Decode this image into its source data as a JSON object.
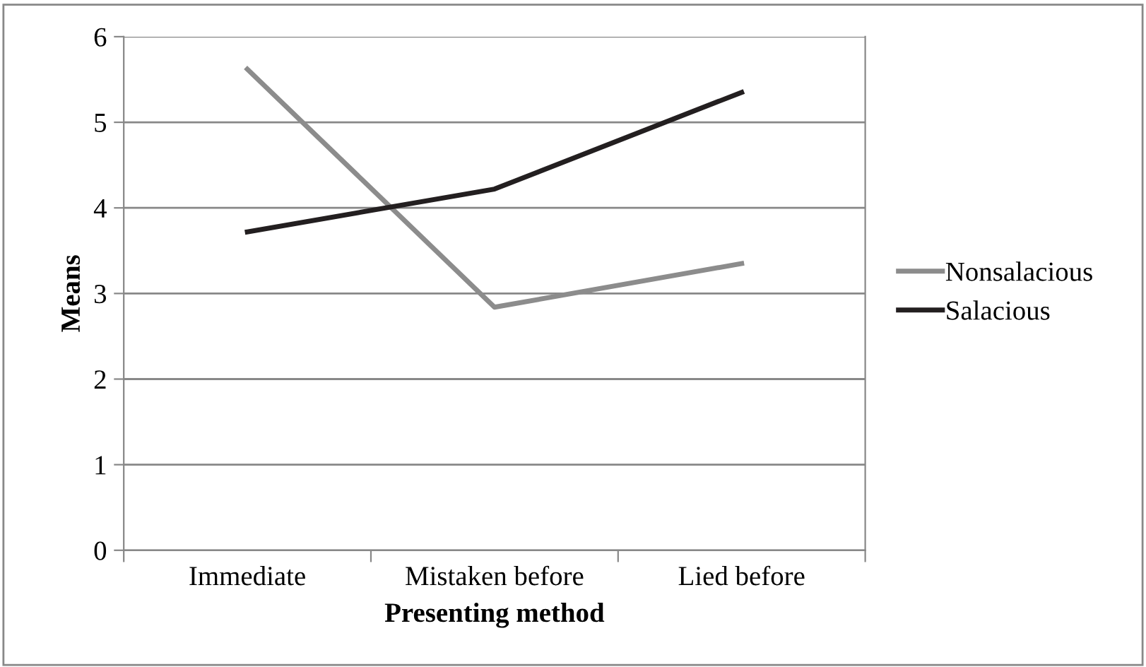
{
  "chart_data": {
    "type": "line",
    "xlabel": "Presenting method",
    "ylabel": "Means",
    "categories": [
      "Immediate",
      "Mistaken before",
      "Lied before"
    ],
    "series": [
      {
        "name": "Nonsalacious",
        "color": "#8c8c8c",
        "values": [
          5.62,
          2.84,
          3.35
        ]
      },
      {
        "name": "Salacious",
        "color": "#231f20",
        "values": [
          3.72,
          4.22,
          5.35
        ]
      }
    ],
    "ylim": [
      0,
      6
    ],
    "yticks": [
      0,
      1,
      2,
      3,
      4,
      5,
      6
    ],
    "grid": "y",
    "legend": "right",
    "marker": "none",
    "line_style": "solid"
  }
}
